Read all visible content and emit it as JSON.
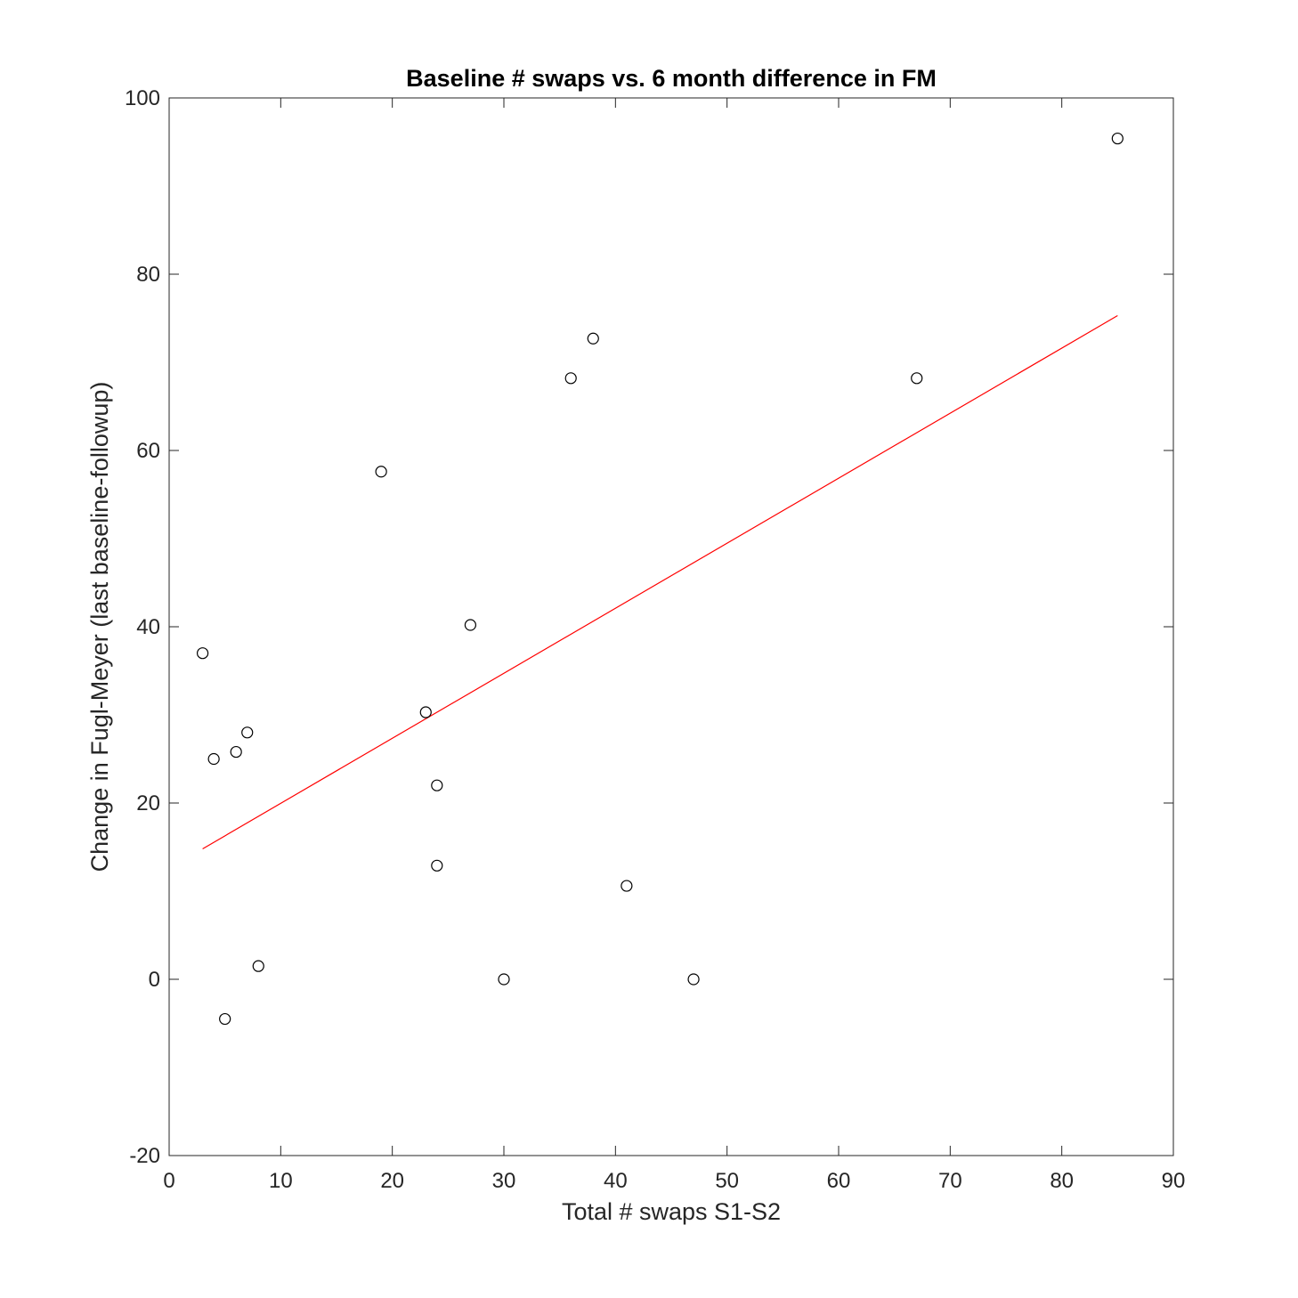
{
  "chart_data": {
    "type": "scatter",
    "title": "Baseline # swaps vs. 6 month difference in FM",
    "xlabel": "Total # swaps S1-S2",
    "ylabel": "Change in Fugl-Meyer (last baseline-followup)",
    "xlim": [
      0,
      90
    ],
    "ylim": [
      -20,
      100
    ],
    "xticks": [
      0,
      10,
      20,
      30,
      40,
      50,
      60,
      70,
      80,
      90
    ],
    "yticks": [
      -20,
      0,
      20,
      40,
      60,
      80,
      100
    ],
    "grid": false,
    "legend": "none",
    "points": [
      {
        "x": 3,
        "y": 37
      },
      {
        "x": 4,
        "y": 25
      },
      {
        "x": 5,
        "y": -4.5
      },
      {
        "x": 6,
        "y": 25.8
      },
      {
        "x": 7,
        "y": 28
      },
      {
        "x": 8,
        "y": 1.5
      },
      {
        "x": 19,
        "y": 57.6
      },
      {
        "x": 23,
        "y": 30.3
      },
      {
        "x": 24,
        "y": 22
      },
      {
        "x": 24,
        "y": 12.9
      },
      {
        "x": 27,
        "y": 40.2
      },
      {
        "x": 30,
        "y": 0
      },
      {
        "x": 36,
        "y": 68.2
      },
      {
        "x": 38,
        "y": 72.7
      },
      {
        "x": 41,
        "y": 10.6
      },
      {
        "x": 47,
        "y": 0
      },
      {
        "x": 67,
        "y": 68.2
      },
      {
        "x": 85,
        "y": 95.4
      }
    ],
    "fit_line": {
      "x": [
        3,
        85
      ],
      "y": [
        14.8,
        75.3
      ]
    },
    "colors": {
      "points": "#000000",
      "fit_line": "#ff0000",
      "axes": "#262626"
    }
  }
}
